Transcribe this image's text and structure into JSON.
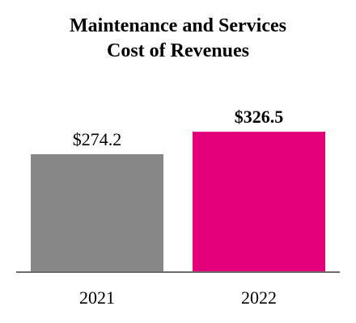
{
  "title": {
    "line1": "Maintenance and Services",
    "line2": "Cost of Revenues"
  },
  "chart_data": {
    "type": "bar",
    "title": "Maintenance and Services Cost of Revenues",
    "categories": [
      "2021",
      "2022"
    ],
    "values": [
      274.2,
      326.5
    ],
    "value_labels": [
      "$274.2",
      "$326.5"
    ],
    "bold_value_labels": [
      false,
      true
    ],
    "colors": [
      "#878787",
      "#e2007a"
    ],
    "axis_color": "#6b6b6b",
    "ylim": [
      0,
      420
    ],
    "grid": false,
    "legend": "none",
    "xlabel": "",
    "ylabel": ""
  }
}
